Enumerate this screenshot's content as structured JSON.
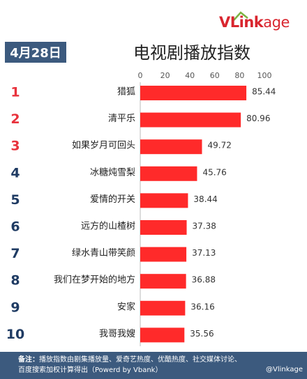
{
  "date": "4月28日",
  "title": "电视剧播放指数",
  "brand": {
    "name_big": "VLink",
    "name_small": "age",
    "color": "#d9262f"
  },
  "footer": {
    "label": "备注：",
    "line1": "播放指数由剧集播放量、爱奇艺热度、优酷热度、社交媒体讨论、",
    "line2": "百度搜索加权计算得出（Powerd by Vbank）"
  },
  "watermark": "@Vlinkage",
  "chart_data": {
    "type": "bar",
    "orientation": "horizontal",
    "title": "电视剧播放指数",
    "xlim": [
      0,
      100
    ],
    "x_ticks": [
      0,
      20,
      40,
      60,
      80,
      100
    ],
    "ranks": [
      "1",
      "2",
      "3",
      "4",
      "5",
      "6",
      "7",
      "8",
      "9",
      "10"
    ],
    "categories": [
      "猎狐",
      "清平乐",
      "如果岁月可回头",
      "冰糖炖雪梨",
      "爱情的开关",
      "远方的山楂树",
      "绿水青山带笑颜",
      "我们在梦开始的地方",
      "安家",
      "我哥我嫂"
    ],
    "values": [
      85.44,
      80.96,
      49.72,
      45.76,
      38.44,
      37.38,
      37.13,
      36.88,
      36.16,
      35.56
    ],
    "value_labels": [
      "85.44",
      "80.96",
      "49.72",
      "45.76",
      "38.44",
      "37.38",
      "37.13",
      "36.88",
      "36.16",
      "35.56"
    ],
    "bar_color": "#ff2a2a",
    "rank_colors": {
      "top3": "#e8323c",
      "rest": "#1f3b63"
    }
  }
}
